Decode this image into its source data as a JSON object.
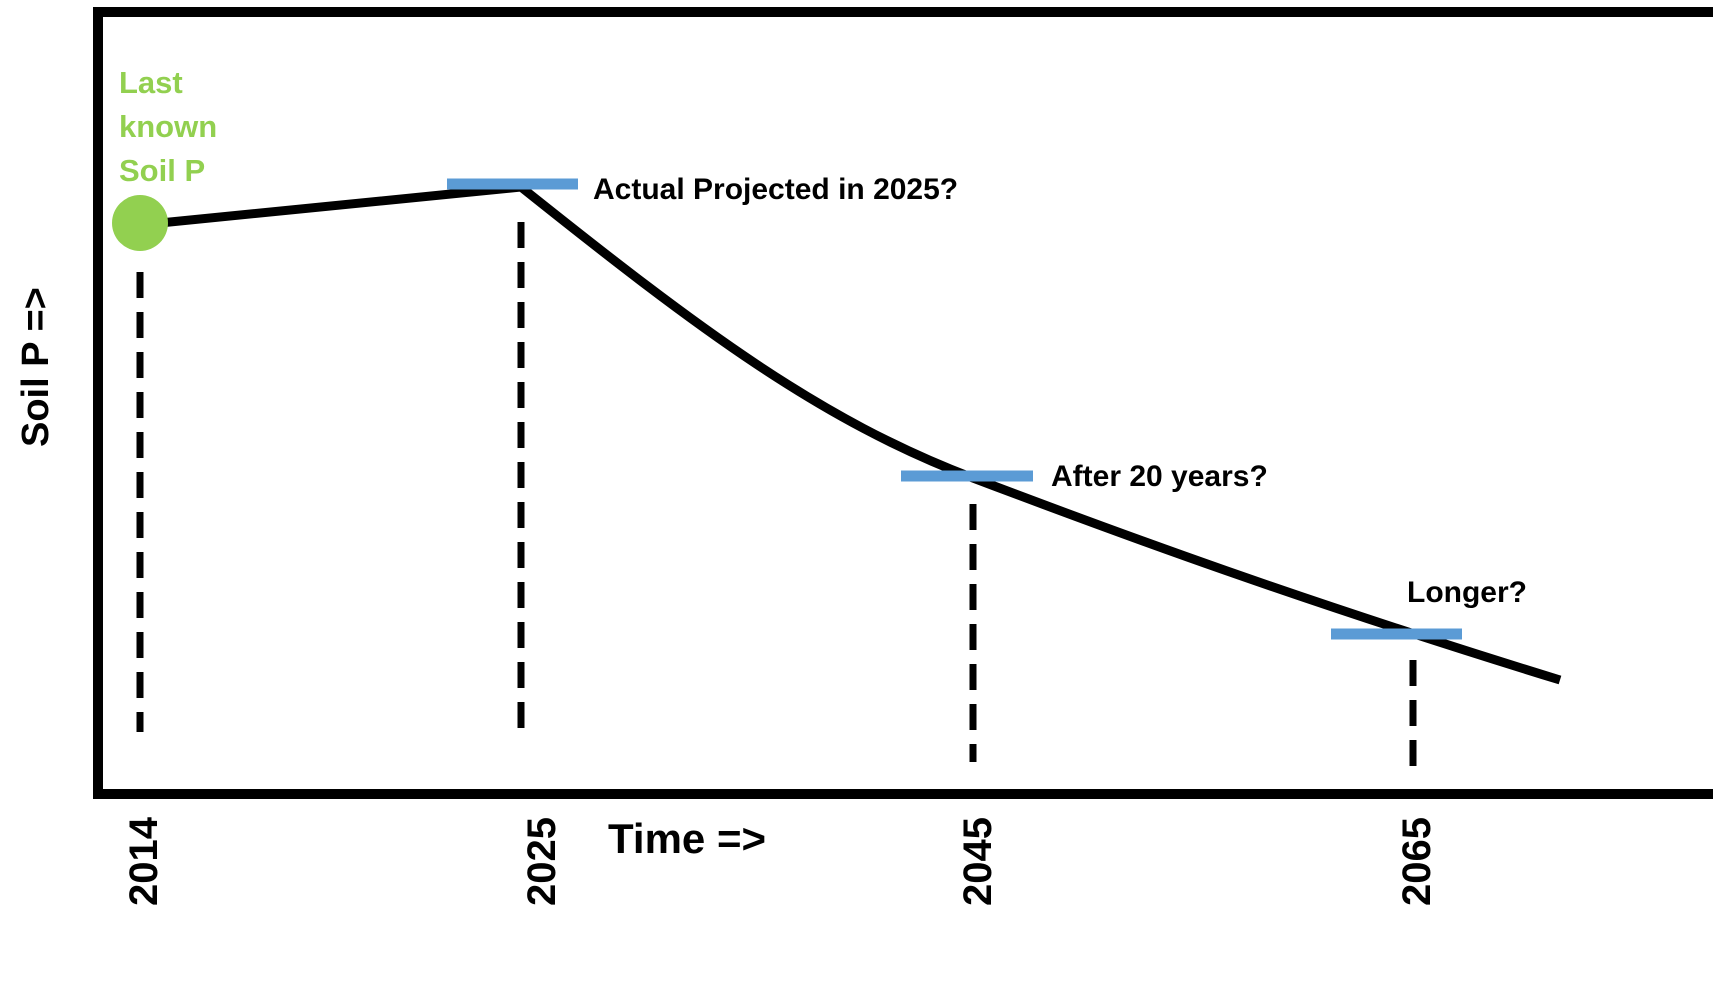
{
  "diagram": {
    "axes": {
      "x_label": "Time =>",
      "y_label": "Soil P =>"
    },
    "start_point": {
      "label_lines": [
        "Last",
        "known",
        "Soil P"
      ],
      "year": "2014"
    },
    "projection_markers": [
      {
        "year": "2025",
        "label": "Actual Projected in 2025?"
      },
      {
        "year": "2045",
        "label": "After 20 years?"
      },
      {
        "year": "2065",
        "label": "Longer?"
      }
    ],
    "colors": {
      "frame": "#000000",
      "curve": "#000000",
      "start_point": "#92d050",
      "marker": "#5b9bd5",
      "text": "#000000"
    }
  }
}
